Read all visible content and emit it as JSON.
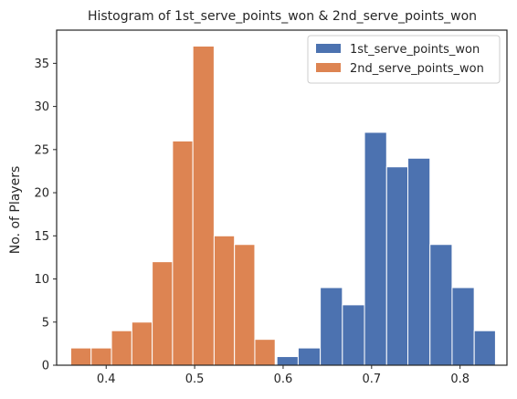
{
  "chart_data": {
    "type": "bar",
    "title": "Histogram of 1st_serve_points_won & 2nd_serve_points_won",
    "xlabel": "",
    "ylabel": "No. of Players",
    "xlim": [
      0.344,
      0.853
    ],
    "ylim": [
      0,
      38.85
    ],
    "xticks": [
      0.4,
      0.5,
      0.6,
      0.7,
      0.8
    ],
    "xtick_labels": [
      "0.4",
      "0.5",
      "0.6",
      "0.7",
      "0.8"
    ],
    "yticks": [
      0,
      5,
      10,
      15,
      20,
      25,
      30,
      35
    ],
    "ytick_labels": [
      "0",
      "5",
      "10",
      "15",
      "20",
      "25",
      "30",
      "35"
    ],
    "grid": false,
    "legend_position": "top-right",
    "series": [
      {
        "name": "1st_serve_points_won",
        "color": "#4c72b0",
        "bins": [
          {
            "x0": 0.593,
            "x1": 0.617,
            "value": 1
          },
          {
            "x0": 0.617,
            "x1": 0.642,
            "value": 2
          },
          {
            "x0": 0.642,
            "x1": 0.667,
            "value": 9
          },
          {
            "x0": 0.667,
            "x1": 0.692,
            "value": 7
          },
          {
            "x0": 0.692,
            "x1": 0.717,
            "value": 27
          },
          {
            "x0": 0.717,
            "x1": 0.741,
            "value": 23
          },
          {
            "x0": 0.741,
            "x1": 0.766,
            "value": 24
          },
          {
            "x0": 0.766,
            "x1": 0.791,
            "value": 14
          },
          {
            "x0": 0.791,
            "x1": 0.816,
            "value": 9
          },
          {
            "x0": 0.816,
            "x1": 0.84,
            "value": 4
          }
        ]
      },
      {
        "name": "2nd_serve_points_won",
        "color": "#dd8452",
        "bins": [
          {
            "x0": 0.36,
            "x1": 0.383,
            "value": 2
          },
          {
            "x0": 0.383,
            "x1": 0.406,
            "value": 2
          },
          {
            "x0": 0.406,
            "x1": 0.429,
            "value": 4
          },
          {
            "x0": 0.429,
            "x1": 0.452,
            "value": 5
          },
          {
            "x0": 0.452,
            "x1": 0.475,
            "value": 12
          },
          {
            "x0": 0.475,
            "x1": 0.498,
            "value": 26
          },
          {
            "x0": 0.498,
            "x1": 0.522,
            "value": 37
          },
          {
            "x0": 0.522,
            "x1": 0.545,
            "value": 15
          },
          {
            "x0": 0.545,
            "x1": 0.568,
            "value": 14
          },
          {
            "x0": 0.568,
            "x1": 0.591,
            "value": 3
          }
        ]
      }
    ]
  }
}
